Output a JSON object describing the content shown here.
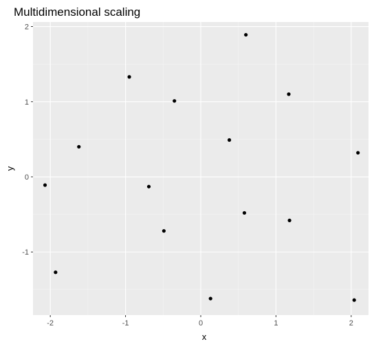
{
  "chart_data": {
    "type": "scatter",
    "title": "Multidimensional scaling",
    "xlabel": "x",
    "ylabel": "y",
    "xlim": [
      -2.23,
      2.23
    ],
    "ylim": [
      -1.84,
      2.06
    ],
    "x_ticks": [
      -2,
      -1,
      0,
      1,
      2
    ],
    "y_ticks": [
      -1,
      0,
      1,
      2
    ],
    "x_tick_labels": [
      "-2",
      "-1",
      "0",
      "1",
      "2"
    ],
    "y_tick_labels": [
      "-1",
      "0",
      "1",
      "2"
    ],
    "grid": true,
    "points": [
      {
        "x": 0.6,
        "y": 1.89
      },
      {
        "x": -0.95,
        "y": 1.33
      },
      {
        "x": 1.17,
        "y": 1.1
      },
      {
        "x": -0.35,
        "y": 1.01
      },
      {
        "x": 0.38,
        "y": 0.49
      },
      {
        "x": -1.62,
        "y": 0.4
      },
      {
        "x": 2.09,
        "y": 0.32
      },
      {
        "x": -2.07,
        "y": -0.11
      },
      {
        "x": -0.69,
        "y": -0.13
      },
      {
        "x": 0.58,
        "y": -0.48
      },
      {
        "x": 1.18,
        "y": -0.58
      },
      {
        "x": -0.49,
        "y": -0.72
      },
      {
        "x": -1.93,
        "y": -1.27
      },
      {
        "x": 0.13,
        "y": -1.62
      },
      {
        "x": 2.04,
        "y": -1.64
      }
    ],
    "colors": {
      "panel": "#ebebeb",
      "grid_major": "#ffffff",
      "point": "#000000",
      "tick_text": "#4d4d4d",
      "tick_mark": "#333333"
    }
  }
}
